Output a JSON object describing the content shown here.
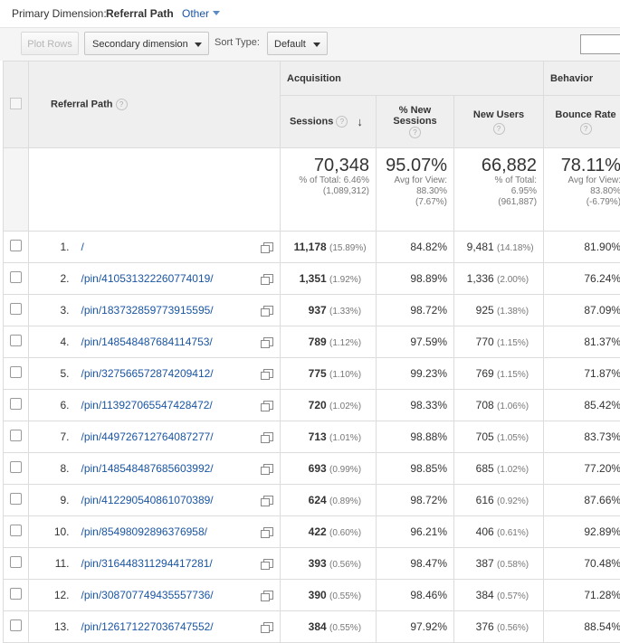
{
  "primary": {
    "label": "Primary Dimension:",
    "current": "Referral Path",
    "other": "Other"
  },
  "toolbar": {
    "plot_rows": "Plot Rows",
    "secondary": "Secondary dimension",
    "sort_label": "Sort Type:",
    "sort_value": "Default"
  },
  "headers": {
    "acquisition": "Acquisition",
    "behavior": "Behavior",
    "referral_path": "Referral Path",
    "sessions": "Sessions",
    "pct_new_sessions": "% New Sessions",
    "new_users": "New Users",
    "bounce_rate": "Bounce Rate"
  },
  "totals": {
    "sessions": {
      "value": "70,348",
      "l1": "% of Total: 6.46%",
      "l2": "(1,089,312)"
    },
    "pct_new": {
      "value": "95.07%",
      "l1": "Avg for View:",
      "l2": "88.30%",
      "l3": "(7.67%)"
    },
    "new_users": {
      "value": "66,882",
      "l1": "% of Total:",
      "l2": "6.95%",
      "l3": "(961,887)"
    },
    "bounce": {
      "value": "78.11%",
      "l1": "Avg for View:",
      "l2": "83.80%",
      "l3": "(-6.79%)"
    }
  },
  "rows": [
    {
      "idx": "1.",
      "path": "/",
      "sessions": "11,178",
      "sessions_pct": "(15.89%)",
      "pct_new": "84.82%",
      "new_users": "9,481",
      "new_users_pct": "(14.18%)",
      "bounce": "81.90%"
    },
    {
      "idx": "2.",
      "path": "/pin/410531322260774019/",
      "sessions": "1,351",
      "sessions_pct": "(1.92%)",
      "pct_new": "98.89%",
      "new_users": "1,336",
      "new_users_pct": "(2.00%)",
      "bounce": "76.24%"
    },
    {
      "idx": "3.",
      "path": "/pin/183732859773915595/",
      "sessions": "937",
      "sessions_pct": "(1.33%)",
      "pct_new": "98.72%",
      "new_users": "925",
      "new_users_pct": "(1.38%)",
      "bounce": "87.09%"
    },
    {
      "idx": "4.",
      "path": "/pin/148548487684114753/",
      "sessions": "789",
      "sessions_pct": "(1.12%)",
      "pct_new": "97.59%",
      "new_users": "770",
      "new_users_pct": "(1.15%)",
      "bounce": "81.37%"
    },
    {
      "idx": "5.",
      "path": "/pin/327566572874209412/",
      "sessions": "775",
      "sessions_pct": "(1.10%)",
      "pct_new": "99.23%",
      "new_users": "769",
      "new_users_pct": "(1.15%)",
      "bounce": "71.87%"
    },
    {
      "idx": "6.",
      "path": "/pin/113927065547428472/",
      "sessions": "720",
      "sessions_pct": "(1.02%)",
      "pct_new": "98.33%",
      "new_users": "708",
      "new_users_pct": "(1.06%)",
      "bounce": "85.42%"
    },
    {
      "idx": "7.",
      "path": "/pin/449726712764087277/",
      "sessions": "713",
      "sessions_pct": "(1.01%)",
      "pct_new": "98.88%",
      "new_users": "705",
      "new_users_pct": "(1.05%)",
      "bounce": "83.73%"
    },
    {
      "idx": "8.",
      "path": "/pin/148548487685603992/",
      "sessions": "693",
      "sessions_pct": "(0.99%)",
      "pct_new": "98.85%",
      "new_users": "685",
      "new_users_pct": "(1.02%)",
      "bounce": "77.20%"
    },
    {
      "idx": "9.",
      "path": "/pin/412290540861070389/",
      "sessions": "624",
      "sessions_pct": "(0.89%)",
      "pct_new": "98.72%",
      "new_users": "616",
      "new_users_pct": "(0.92%)",
      "bounce": "87.66%"
    },
    {
      "idx": "10.",
      "path": "/pin/85498092896376958/",
      "sessions": "422",
      "sessions_pct": "(0.60%)",
      "pct_new": "96.21%",
      "new_users": "406",
      "new_users_pct": "(0.61%)",
      "bounce": "92.89%"
    },
    {
      "idx": "11.",
      "path": "/pin/316448311294417281/",
      "sessions": "393",
      "sessions_pct": "(0.56%)",
      "pct_new": "98.47%",
      "new_users": "387",
      "new_users_pct": "(0.58%)",
      "bounce": "70.48%"
    },
    {
      "idx": "12.",
      "path": "/pin/308707749435557736/",
      "sessions": "390",
      "sessions_pct": "(0.55%)",
      "pct_new": "98.46%",
      "new_users": "384",
      "new_users_pct": "(0.57%)",
      "bounce": "71.28%"
    },
    {
      "idx": "13.",
      "path": "/pin/126171227036747552/",
      "sessions": "384",
      "sessions_pct": "(0.55%)",
      "pct_new": "97.92%",
      "new_users": "376",
      "new_users_pct": "(0.56%)",
      "bounce": "88.54%"
    }
  ]
}
